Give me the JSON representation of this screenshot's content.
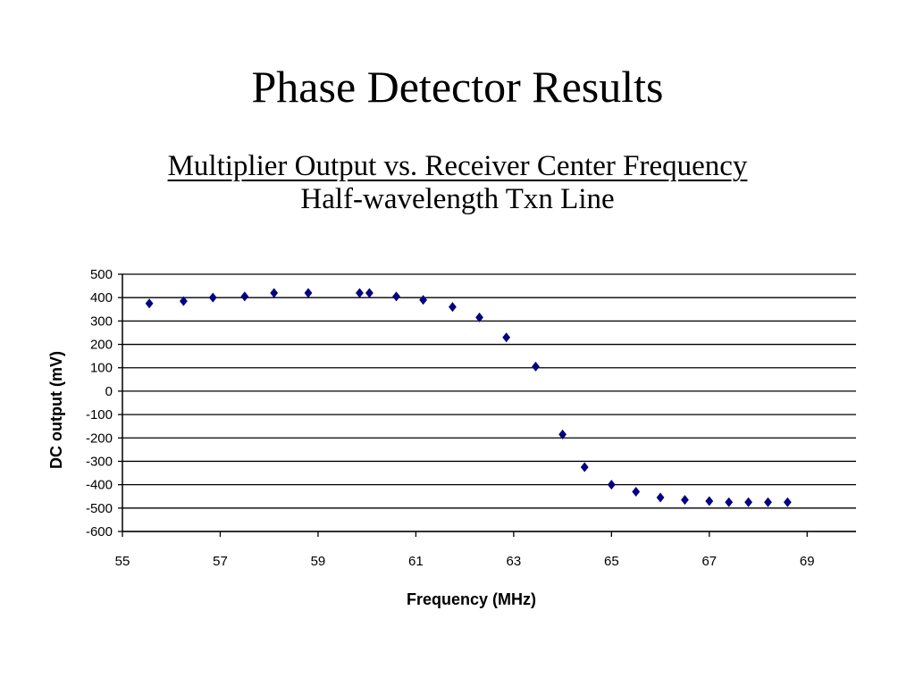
{
  "slide": {
    "title": "Phase Detector Results"
  },
  "chart_data": {
    "type": "scatter",
    "title": "Multiplier Output vs. Receiver Center Frequency",
    "subtitle": "Half-wavelength Txn Line",
    "xlabel": "Frequency (MHz)",
    "ylabel": "DC output (mV)",
    "xlim": [
      55,
      70
    ],
    "ylim": [
      -600,
      500
    ],
    "xticks": [
      55,
      57,
      59,
      61,
      63,
      65,
      67,
      69
    ],
    "yticks": [
      500,
      400,
      300,
      200,
      100,
      0,
      -100,
      -200,
      -300,
      -400,
      -500,
      -600
    ],
    "grid": "horizontal",
    "marker": "diamond",
    "color": "#00007F",
    "series": [
      {
        "x": [
          55.55,
          56.25,
          56.85,
          57.5,
          58.1,
          58.8,
          59.85,
          60.05,
          60.6,
          61.15,
          61.75,
          62.3,
          62.85,
          63.45,
          64.0,
          64.45,
          65.0,
          65.5,
          66.0,
          66.5,
          67.0,
          67.4,
          67.8,
          68.2,
          68.6
        ],
        "y": [
          375,
          385,
          400,
          405,
          420,
          420,
          420,
          420,
          405,
          390,
          360,
          315,
          230,
          105,
          -185,
          -325,
          -400,
          -430,
          -455,
          -465,
          -470,
          -475,
          -475,
          -475,
          -475
        ]
      }
    ]
  }
}
